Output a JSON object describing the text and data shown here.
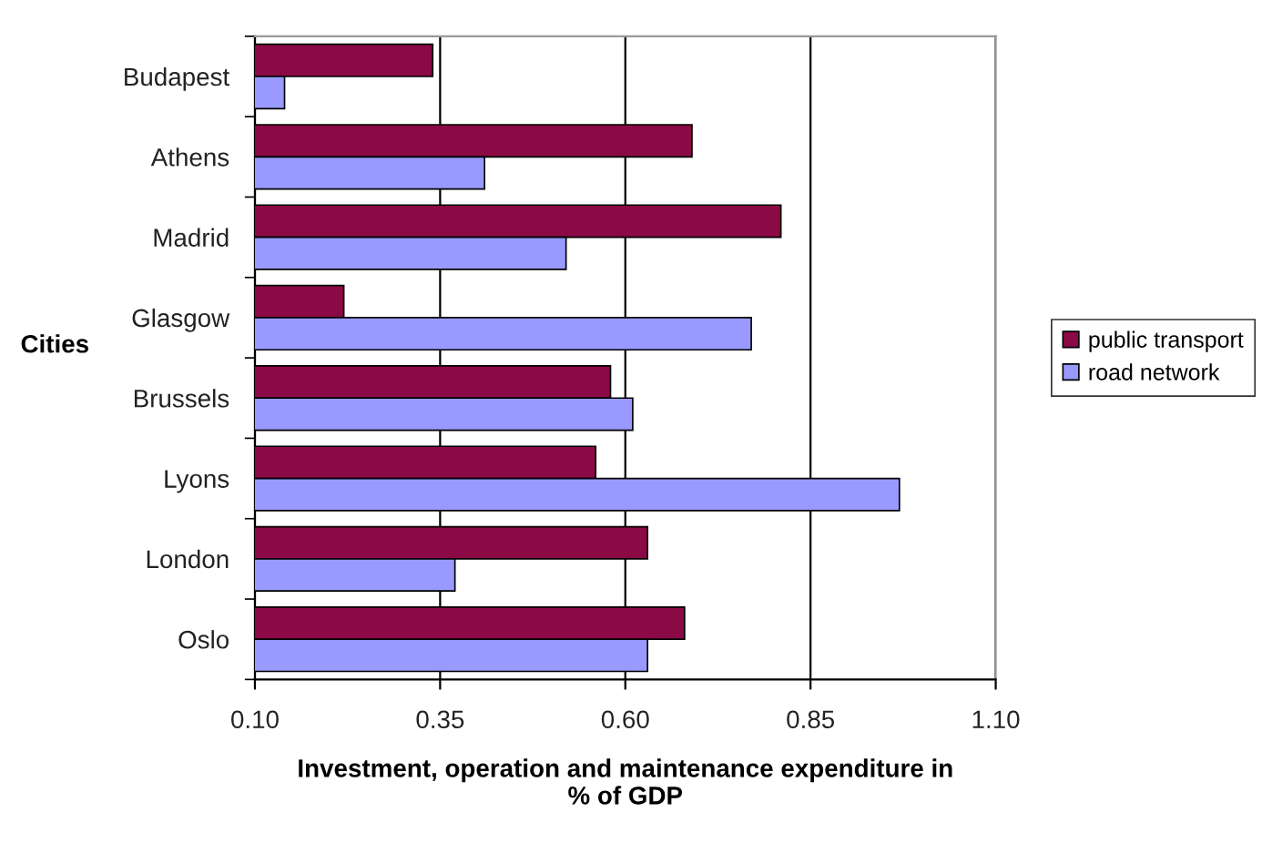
{
  "chart_data": {
    "type": "bar",
    "orientation": "horizontal",
    "ylabel": "Cities",
    "xlabel": "Investment, operation and maintenance expenditure in\n% of GDP",
    "categories": [
      "Budapest",
      "Athens",
      "Madrid",
      "Glasgow",
      "Brussels",
      "Lyons",
      "London",
      "Oslo"
    ],
    "series": [
      {
        "name": "public transport",
        "color": "#8b0a45",
        "values": [
          0.34,
          0.69,
          0.81,
          0.22,
          0.58,
          0.56,
          0.63,
          0.68
        ]
      },
      {
        "name": "road network",
        "color": "#9999ff",
        "values": [
          0.14,
          0.41,
          0.52,
          0.77,
          0.61,
          0.97,
          0.37,
          0.63
        ]
      }
    ],
    "xlim": [
      0.1,
      1.1
    ],
    "xticks": [
      {
        "value": 0.1,
        "label": "0.10"
      },
      {
        "value": 0.35,
        "label": "0.35"
      },
      {
        "value": 0.6,
        "label": "0.60"
      },
      {
        "value": 0.85,
        "label": "0.85"
      },
      {
        "value": 1.1,
        "label": "1.10"
      }
    ],
    "grid": "x",
    "legend": "right"
  }
}
